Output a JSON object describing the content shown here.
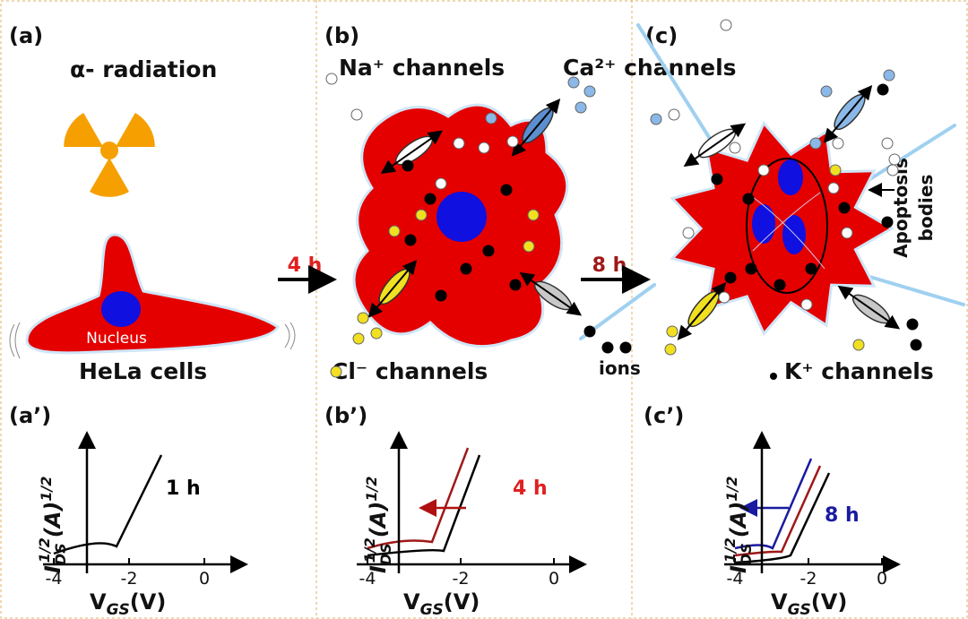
{
  "panels": [
    {
      "label": "(a)",
      "title": "α- radiation",
      "nucleus": "Nucleus",
      "caption": "HeLa cells"
    },
    {
      "label": "(b)",
      "channels": [
        "Na⁺ channels",
        "Ca²⁺ channels",
        "Cl⁻ channels"
      ],
      "ions": "ions"
    },
    {
      "label": "(c)",
      "apoptosis": [
        "Apoptosis",
        "bodies"
      ],
      "channels": [
        "K⁺ channels"
      ]
    }
  ],
  "arrows": [
    "4 h",
    "8 h"
  ],
  "plots": [
    {
      "label": "(a’)",
      "time": "1 h",
      "xticks": [
        -4,
        -2,
        0
      ]
    },
    {
      "label": "(b’)",
      "time": "4 h",
      "xticks": [
        -4,
        -2,
        0
      ]
    },
    {
      "label": "(c’)",
      "time": "8 h",
      "xticks": [
        -4,
        -2,
        0
      ]
    }
  ],
  "y_label": {
    "main": "I",
    "sub": "DS",
    "sup": "1/2",
    "unit": "(A)",
    "unit_sup": "1/2"
  },
  "x_label": {
    "main": "V",
    "sub": "GS",
    "unit": "(V)"
  }
}
